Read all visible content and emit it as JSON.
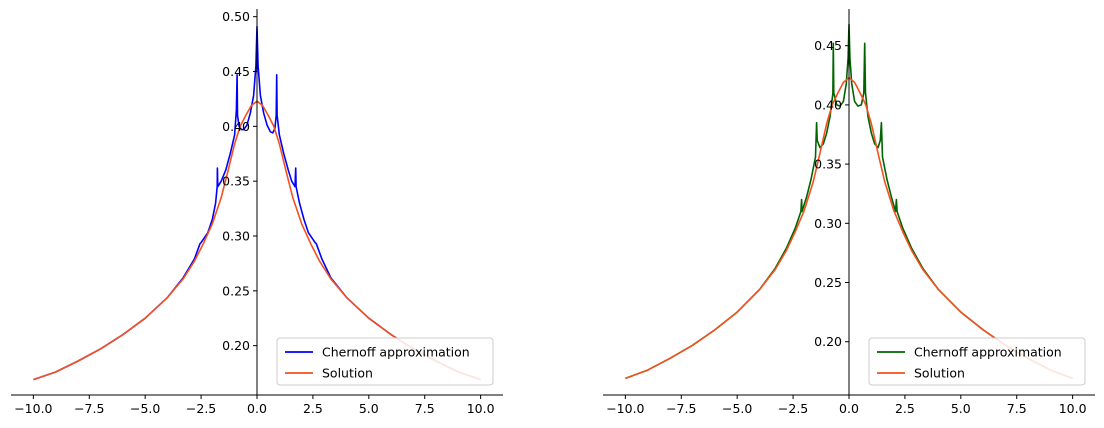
{
  "chart_data": [
    {
      "type": "line",
      "xlim": [
        -11,
        11
      ],
      "ylim": [
        0.155,
        0.507
      ],
      "xticks": [
        -10,
        -7.5,
        -5,
        -2.5,
        0,
        2.5,
        5,
        7.5,
        10
      ],
      "xtick_labels": [
        "−10.0",
        "−7.5",
        "−5.0",
        "−2.5",
        "0.0",
        "2.5",
        "5.0",
        "7.5",
        "10.0"
      ],
      "yticks": [
        0.2,
        0.25,
        0.3,
        0.35,
        0.4,
        0.45,
        0.5
      ],
      "ytick_labels": [
        "0.20",
        "0.25",
        "0.30",
        "0.35",
        "0.40",
        "0.45",
        "0.50"
      ],
      "grid": false,
      "legend_position": "lower-right",
      "series": [
        {
          "name": "Chernoff approximation",
          "color": "#0000ff",
          "points": [
            [
              -10,
              0.169
            ],
            [
              -9,
              0.176
            ],
            [
              -8,
              0.186
            ],
            [
              -7,
              0.197
            ],
            [
              -6,
              0.21
            ],
            [
              -5,
              0.225
            ],
            [
              -4,
              0.244
            ],
            [
              -3.3,
              0.262
            ],
            [
              -2.8,
              0.279
            ],
            [
              -2.55,
              0.293
            ],
            [
              -2.5,
              0.294
            ],
            [
              -2.2,
              0.303
            ],
            [
              -2.0,
              0.315
            ],
            [
              -1.85,
              0.33
            ],
            [
              -1.78,
              0.345
            ],
            [
              -1.77,
              0.362
            ],
            [
              -1.755,
              0.345
            ],
            [
              -1.6,
              0.35
            ],
            [
              -1.4,
              0.36
            ],
            [
              -1.2,
              0.375
            ],
            [
              -1.0,
              0.392
            ],
            [
              -0.92,
              0.415
            ],
            [
              -0.89,
              0.447
            ],
            [
              -0.87,
              0.41
            ],
            [
              -0.8,
              0.4
            ],
            [
              -0.7,
              0.397
            ],
            [
              -0.6,
              0.397
            ],
            [
              -0.45,
              0.401
            ],
            [
              -0.3,
              0.412
            ],
            [
              -0.15,
              0.428
            ],
            [
              -0.05,
              0.455
            ],
            [
              0,
              0.491
            ],
            [
              0.05,
              0.455
            ],
            [
              0.15,
              0.428
            ],
            [
              0.3,
              0.412
            ],
            [
              0.45,
              0.401
            ],
            [
              0.6,
              0.395
            ],
            [
              0.7,
              0.394
            ],
            [
              0.8,
              0.398
            ],
            [
              0.86,
              0.41
            ],
            [
              0.88,
              0.447
            ],
            [
              0.9,
              0.41
            ],
            [
              1.0,
              0.392
            ],
            [
              1.2,
              0.375
            ],
            [
              1.4,
              0.36
            ],
            [
              1.55,
              0.35
            ],
            [
              1.7,
              0.345
            ],
            [
              1.73,
              0.362
            ],
            [
              1.75,
              0.345
            ],
            [
              1.9,
              0.33
            ],
            [
              2.1,
              0.315
            ],
            [
              2.3,
              0.303
            ],
            [
              2.6,
              0.294
            ],
            [
              2.65,
              0.293
            ],
            [
              2.9,
              0.279
            ],
            [
              3.3,
              0.262
            ],
            [
              4,
              0.244
            ],
            [
              5,
              0.225
            ],
            [
              6,
              0.21
            ],
            [
              7,
              0.197
            ],
            [
              8,
              0.186
            ],
            [
              9,
              0.176
            ],
            [
              10,
              0.169
            ]
          ]
        },
        {
          "name": "Solution",
          "color": "#f4511e",
          "points": [
            [
              -10,
              0.169
            ],
            [
              -9,
              0.176
            ],
            [
              -8,
              0.186
            ],
            [
              -7,
              0.197
            ],
            [
              -6,
              0.21
            ],
            [
              -5,
              0.225
            ],
            [
              -4,
              0.244
            ],
            [
              -3.3,
              0.261
            ],
            [
              -2.8,
              0.277
            ],
            [
              -2.4,
              0.293
            ],
            [
              -2.0,
              0.311
            ],
            [
              -1.6,
              0.335
            ],
            [
              -1.3,
              0.359
            ],
            [
              -1.0,
              0.384
            ],
            [
              -0.75,
              0.4
            ],
            [
              -0.5,
              0.41
            ],
            [
              -0.25,
              0.419
            ],
            [
              0,
              0.423
            ],
            [
              0.25,
              0.419
            ],
            [
              0.5,
              0.41
            ],
            [
              0.75,
              0.4
            ],
            [
              1.0,
              0.384
            ],
            [
              1.3,
              0.359
            ],
            [
              1.6,
              0.335
            ],
            [
              2.0,
              0.311
            ],
            [
              2.4,
              0.293
            ],
            [
              2.8,
              0.277
            ],
            [
              3.3,
              0.261
            ],
            [
              4,
              0.244
            ],
            [
              5,
              0.225
            ],
            [
              6,
              0.21
            ],
            [
              7,
              0.197
            ],
            [
              8,
              0.186
            ],
            [
              9,
              0.176
            ],
            [
              10,
              0.169
            ]
          ]
        }
      ]
    },
    {
      "type": "line",
      "xlim": [
        -11,
        11
      ],
      "ylim": [
        0.155,
        0.481
      ],
      "xticks": [
        -10,
        -7.5,
        -5,
        -2.5,
        0,
        2.5,
        5,
        7.5,
        10
      ],
      "xtick_labels": [
        "−10.0",
        "−7.5",
        "−5.0",
        "−2.5",
        "0.0",
        "2.5",
        "5.0",
        "7.5",
        "10.0"
      ],
      "yticks": [
        0.2,
        0.25,
        0.3,
        0.35,
        0.4,
        0.45
      ],
      "ytick_labels": [
        "0.20",
        "0.25",
        "0.30",
        "0.35",
        "0.40",
        "0.45"
      ],
      "grid": false,
      "legend_position": "lower-right",
      "series": [
        {
          "name": "Chernoff approximation",
          "color": "#006400",
          "points": [
            [
              -10,
              0.169
            ],
            [
              -9,
              0.176
            ],
            [
              -8,
              0.186
            ],
            [
              -7,
              0.197
            ],
            [
              -6,
              0.21
            ],
            [
              -5,
              0.225
            ],
            [
              -4,
              0.244
            ],
            [
              -3.3,
              0.262
            ],
            [
              -2.8,
              0.279
            ],
            [
              -2.4,
              0.296
            ],
            [
              -2.15,
              0.31
            ],
            [
              -2.12,
              0.32
            ],
            [
              -2.1,
              0.31
            ],
            [
              -1.9,
              0.322
            ],
            [
              -1.7,
              0.337
            ],
            [
              -1.5,
              0.356
            ],
            [
              -1.45,
              0.385
            ],
            [
              -1.42,
              0.37
            ],
            [
              -1.3,
              0.364
            ],
            [
              -1.15,
              0.367
            ],
            [
              -1.0,
              0.376
            ],
            [
              -0.85,
              0.39
            ],
            [
              -0.72,
              0.41
            ],
            [
              -0.7,
              0.452
            ],
            [
              -0.68,
              0.41
            ],
            [
              -0.55,
              0.4
            ],
            [
              -0.4,
              0.399
            ],
            [
              -0.25,
              0.403
            ],
            [
              -0.12,
              0.418
            ],
            [
              -0.04,
              0.44
            ],
            [
              0,
              0.468
            ],
            [
              0.04,
              0.44
            ],
            [
              0.12,
              0.418
            ],
            [
              0.25,
              0.403
            ],
            [
              0.4,
              0.399
            ],
            [
              0.55,
              0.4
            ],
            [
              0.66,
              0.41
            ],
            [
              0.7,
              0.452
            ],
            [
              0.74,
              0.41
            ],
            [
              0.85,
              0.39
            ],
            [
              1.0,
              0.376
            ],
            [
              1.15,
              0.367
            ],
            [
              1.3,
              0.364
            ],
            [
              1.4,
              0.37
            ],
            [
              1.45,
              0.385
            ],
            [
              1.5,
              0.356
            ],
            [
              1.7,
              0.337
            ],
            [
              1.9,
              0.322
            ],
            [
              2.08,
              0.31
            ],
            [
              2.12,
              0.32
            ],
            [
              2.15,
              0.31
            ],
            [
              2.4,
              0.296
            ],
            [
              2.8,
              0.279
            ],
            [
              3.3,
              0.262
            ],
            [
              4,
              0.244
            ],
            [
              5,
              0.225
            ],
            [
              6,
              0.21
            ],
            [
              7,
              0.197
            ],
            [
              8,
              0.186
            ],
            [
              9,
              0.176
            ],
            [
              10,
              0.169
            ]
          ]
        },
        {
          "name": "Solution",
          "color": "#f4511e",
          "points": [
            [
              -10,
              0.169
            ],
            [
              -9,
              0.176
            ],
            [
              -8,
              0.186
            ],
            [
              -7,
              0.197
            ],
            [
              -6,
              0.21
            ],
            [
              -5,
              0.225
            ],
            [
              -4,
              0.244
            ],
            [
              -3.3,
              0.261
            ],
            [
              -2.8,
              0.277
            ],
            [
              -2.4,
              0.293
            ],
            [
              -2.0,
              0.311
            ],
            [
              -1.6,
              0.335
            ],
            [
              -1.3,
              0.359
            ],
            [
              -1.0,
              0.384
            ],
            [
              -0.75,
              0.4
            ],
            [
              -0.5,
              0.41
            ],
            [
              -0.25,
              0.419
            ],
            [
              0,
              0.423
            ],
            [
              0.25,
              0.419
            ],
            [
              0.5,
              0.41
            ],
            [
              0.75,
              0.4
            ],
            [
              1.0,
              0.384
            ],
            [
              1.3,
              0.359
            ],
            [
              1.6,
              0.335
            ],
            [
              2.0,
              0.311
            ],
            [
              2.4,
              0.293
            ],
            [
              2.8,
              0.277
            ],
            [
              3.3,
              0.261
            ],
            [
              4,
              0.244
            ],
            [
              5,
              0.225
            ],
            [
              6,
              0.21
            ],
            [
              7,
              0.197
            ],
            [
              8,
              0.186
            ],
            [
              9,
              0.176
            ],
            [
              10,
              0.169
            ]
          ]
        }
      ]
    }
  ]
}
